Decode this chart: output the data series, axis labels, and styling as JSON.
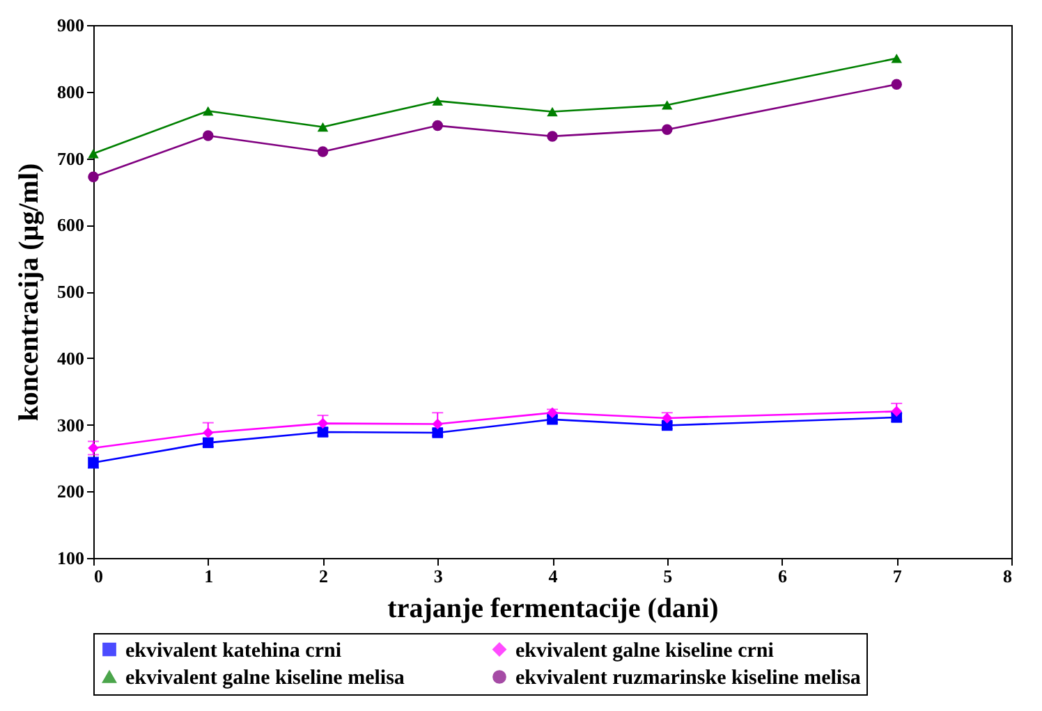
{
  "chart_data": {
    "type": "line",
    "xlabel": "trajanje fermentacije (dani)",
    "ylabel": "koncentracija (µg/ml)",
    "x": [
      0,
      1,
      2,
      3,
      4,
      5,
      7
    ],
    "xlim": [
      0,
      8
    ],
    "xticks": [
      0,
      1,
      2,
      3,
      4,
      5,
      6,
      7,
      8
    ],
    "ylim": [
      100,
      900
    ],
    "yticks": [
      100,
      200,
      300,
      400,
      500,
      600,
      700,
      800,
      900
    ],
    "grid": false,
    "legend": "bottom",
    "series": [
      {
        "name": "ekvivalent katehina crni",
        "color": "#0000ff",
        "marker": "square",
        "values": [
          243,
          273,
          289,
          288,
          308,
          299,
          311
        ],
        "errors": [
          8,
          6,
          6,
          5,
          5,
          5,
          6
        ]
      },
      {
        "name": "ekvivalent galne kiseline crni",
        "color": "#ff00ff",
        "marker": "diamond",
        "values": [
          265,
          288,
          302,
          301,
          318,
          310,
          320
        ],
        "errors": [
          10,
          15,
          12,
          17,
          5,
          8,
          12
        ]
      },
      {
        "name": "ekvivalent galne kiseline melisa",
        "color": "#008000",
        "marker": "triangle",
        "values": [
          707,
          771,
          747,
          786,
          770,
          780,
          850
        ]
      },
      {
        "name": "ekvivalent ruzmarinske kiseline melisa",
        "color": "#800080",
        "marker": "circle",
        "values": [
          672,
          734,
          710,
          749,
          733,
          743,
          811
        ]
      }
    ]
  }
}
